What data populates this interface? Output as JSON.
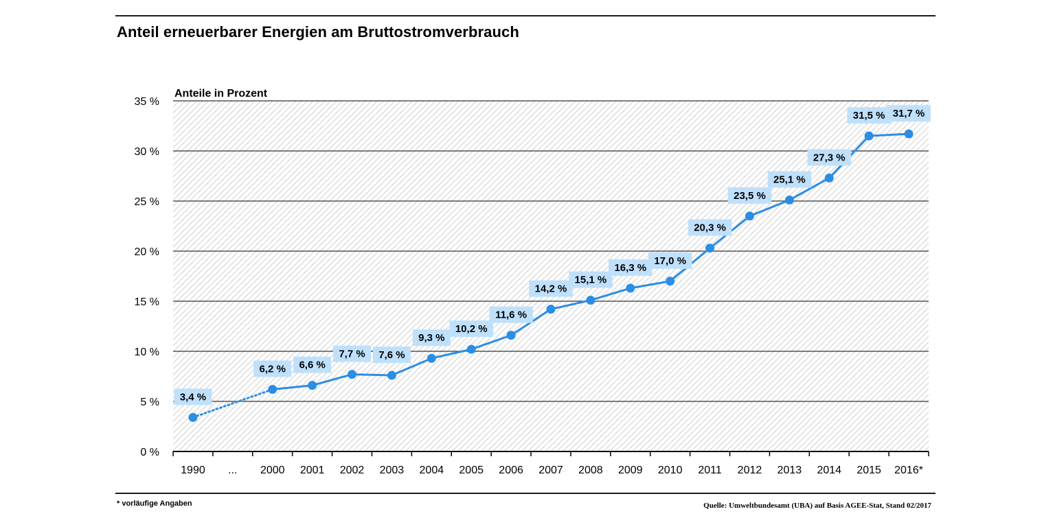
{
  "title": "Anteil erneuerbarer Energien am Bruttostromverbrauch",
  "footnote": "* vorläufige Angaben",
  "source": "Quelle: Umweltbundesamt (UBA) auf Basis AGEE-Stat, Stand 02/2017",
  "colors": {
    "line": "#2b8de3",
    "label_bg": "#bfe0fb",
    "grid": "#333333",
    "hatch": "#d6d6d6"
  },
  "chart_data": {
    "type": "line",
    "title": "Anteil erneuerbarer Energien am Bruttostromverbrauch",
    "ylabel": "Anteile in Prozent",
    "xlabel": "",
    "ylim": [
      0,
      35
    ],
    "yticks": [
      "0 %",
      "5 %",
      "10 %",
      "15 %",
      "20 %",
      "25 %",
      "30 %",
      "35 %"
    ],
    "ytick_values": [
      0,
      5,
      10,
      15,
      20,
      25,
      30,
      35
    ],
    "categories": [
      "1990",
      "...",
      "2000",
      "2001",
      "2002",
      "2003",
      "2004",
      "2005",
      "2006",
      "2007",
      "2008",
      "2009",
      "2010",
      "2011",
      "2012",
      "2013",
      "2014",
      "2015",
      "2016*"
    ],
    "values": [
      3.4,
      null,
      6.2,
      6.6,
      7.7,
      7.6,
      9.3,
      10.2,
      11.6,
      14.2,
      15.1,
      16.3,
      17.0,
      20.3,
      23.5,
      25.1,
      27.3,
      31.5,
      31.7
    ],
    "data_labels": [
      "3,4 %",
      "",
      "6,2 %",
      "6,6 %",
      "7,7 %",
      "7,6 %",
      "9,3 %",
      "10,2 %",
      "11,6 %",
      "14,2 %",
      "15,1 %",
      "16,3 %",
      "17,0 %",
      "20,3 %",
      "23,5 %",
      "25,1 %",
      "27,3 %",
      "31,5 %",
      "31,7 %"
    ],
    "grid": true,
    "dotted_segment": [
      "1990",
      "2000"
    ]
  }
}
